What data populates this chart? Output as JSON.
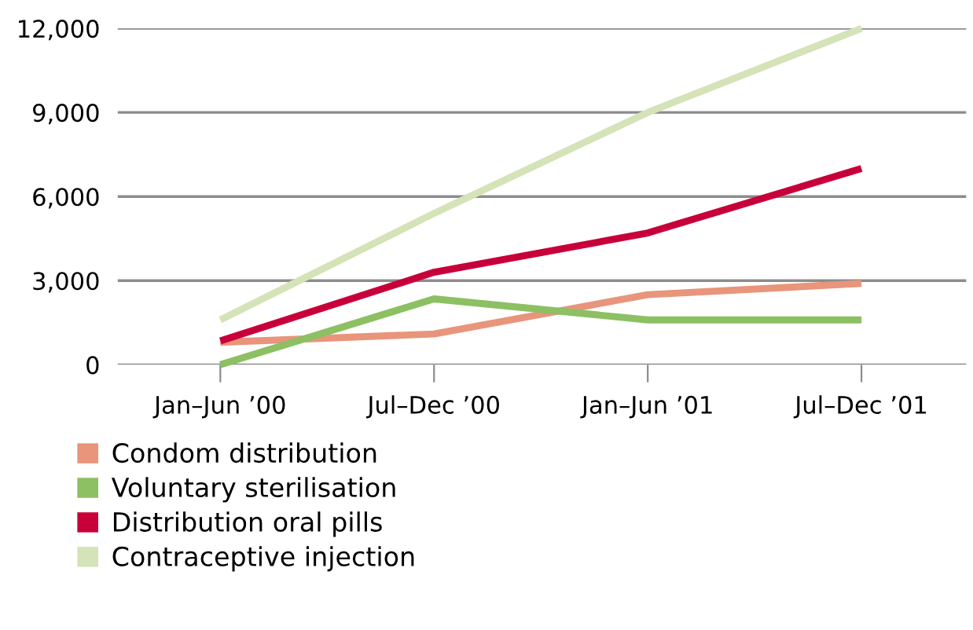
{
  "chart_data": {
    "type": "line",
    "categories": [
      "Jan–Jun ’00",
      "Jul–Dec ’00",
      "Jan–Jun ’01",
      "Jul–Dec ’01"
    ],
    "series": [
      {
        "name": "Condom distribution",
        "color": "#e8957b",
        "values": [
          800,
          1100,
          2500,
          2900
        ]
      },
      {
        "name": "Voluntary sterilisation",
        "color": "#8cc063",
        "values": [
          0,
          2350,
          1600,
          1600
        ]
      },
      {
        "name": "Distribution oral pills",
        "color": "#c8003a",
        "values": [
          850,
          3300,
          4700,
          7000
        ]
      },
      {
        "name": "Contraceptive injection",
        "color": "#d4e3b8",
        "values": [
          1600,
          5400,
          9000,
          12000
        ]
      }
    ],
    "ylim": [
      0,
      12000
    ],
    "yticks": [
      {
        "value": 0,
        "label": "0"
      },
      {
        "value": 3000,
        "label": "3,000"
      },
      {
        "value": 6000,
        "label": "6,000"
      },
      {
        "value": 9000,
        "label": "9,000"
      },
      {
        "value": 12000,
        "label": "12,000"
      }
    ],
    "grid": "y",
    "legend": "bottom left",
    "marker": "none",
    "line_style": "solid"
  }
}
